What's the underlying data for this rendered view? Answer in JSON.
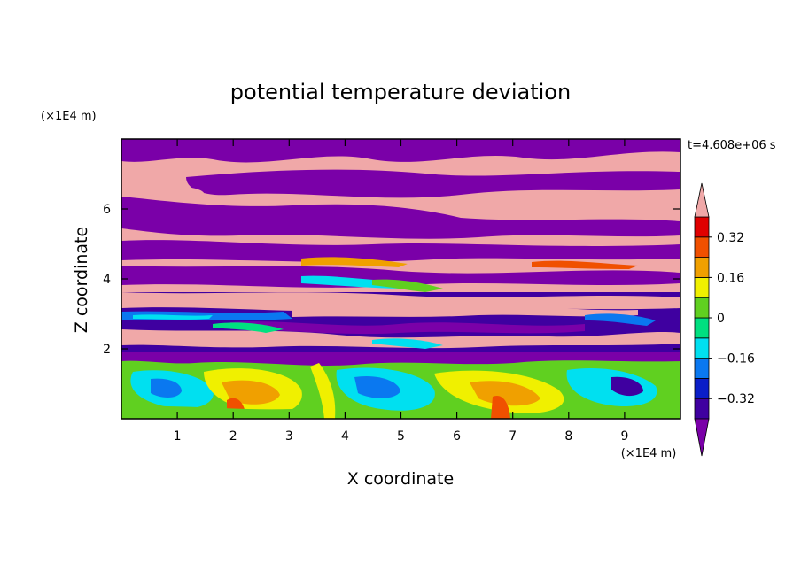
{
  "chart_data": {
    "type": "heatmap",
    "title": "potential temperature deviation",
    "xlabel": "X coordinate",
    "ylabel": "Z coordinate",
    "x_unit": "(×1E4 m)",
    "y_unit": "(×1E4 m)",
    "time_label": "t=4.608e+06 s",
    "xlim": [
      0,
      10
    ],
    "ylim": [
      0,
      8
    ],
    "x_ticks": [
      1,
      2,
      3,
      4,
      5,
      6,
      7,
      8,
      9
    ],
    "y_ticks": [
      2,
      4,
      6
    ],
    "colorbar": {
      "levels": [
        -0.4,
        -0.32,
        -0.24,
        -0.16,
        -0.08,
        0,
        0.08,
        0.16,
        0.24,
        0.32,
        0.4
      ],
      "tick_labels": [
        "0.32",
        "0.16",
        "0",
        "−0.16",
        "−0.32"
      ],
      "tick_values": [
        0.32,
        0.16,
        0,
        -0.16,
        -0.32
      ],
      "colors": [
        "#7a00a8",
        "#3f00a0",
        "#0a1ec8",
        "#0a78f0",
        "#00e0f0",
        "#00e080",
        "#60d020",
        "#f0f000",
        "#f0a000",
        "#f05000",
        "#e00000",
        "#f0a8a8"
      ],
      "extend": "both"
    }
  }
}
